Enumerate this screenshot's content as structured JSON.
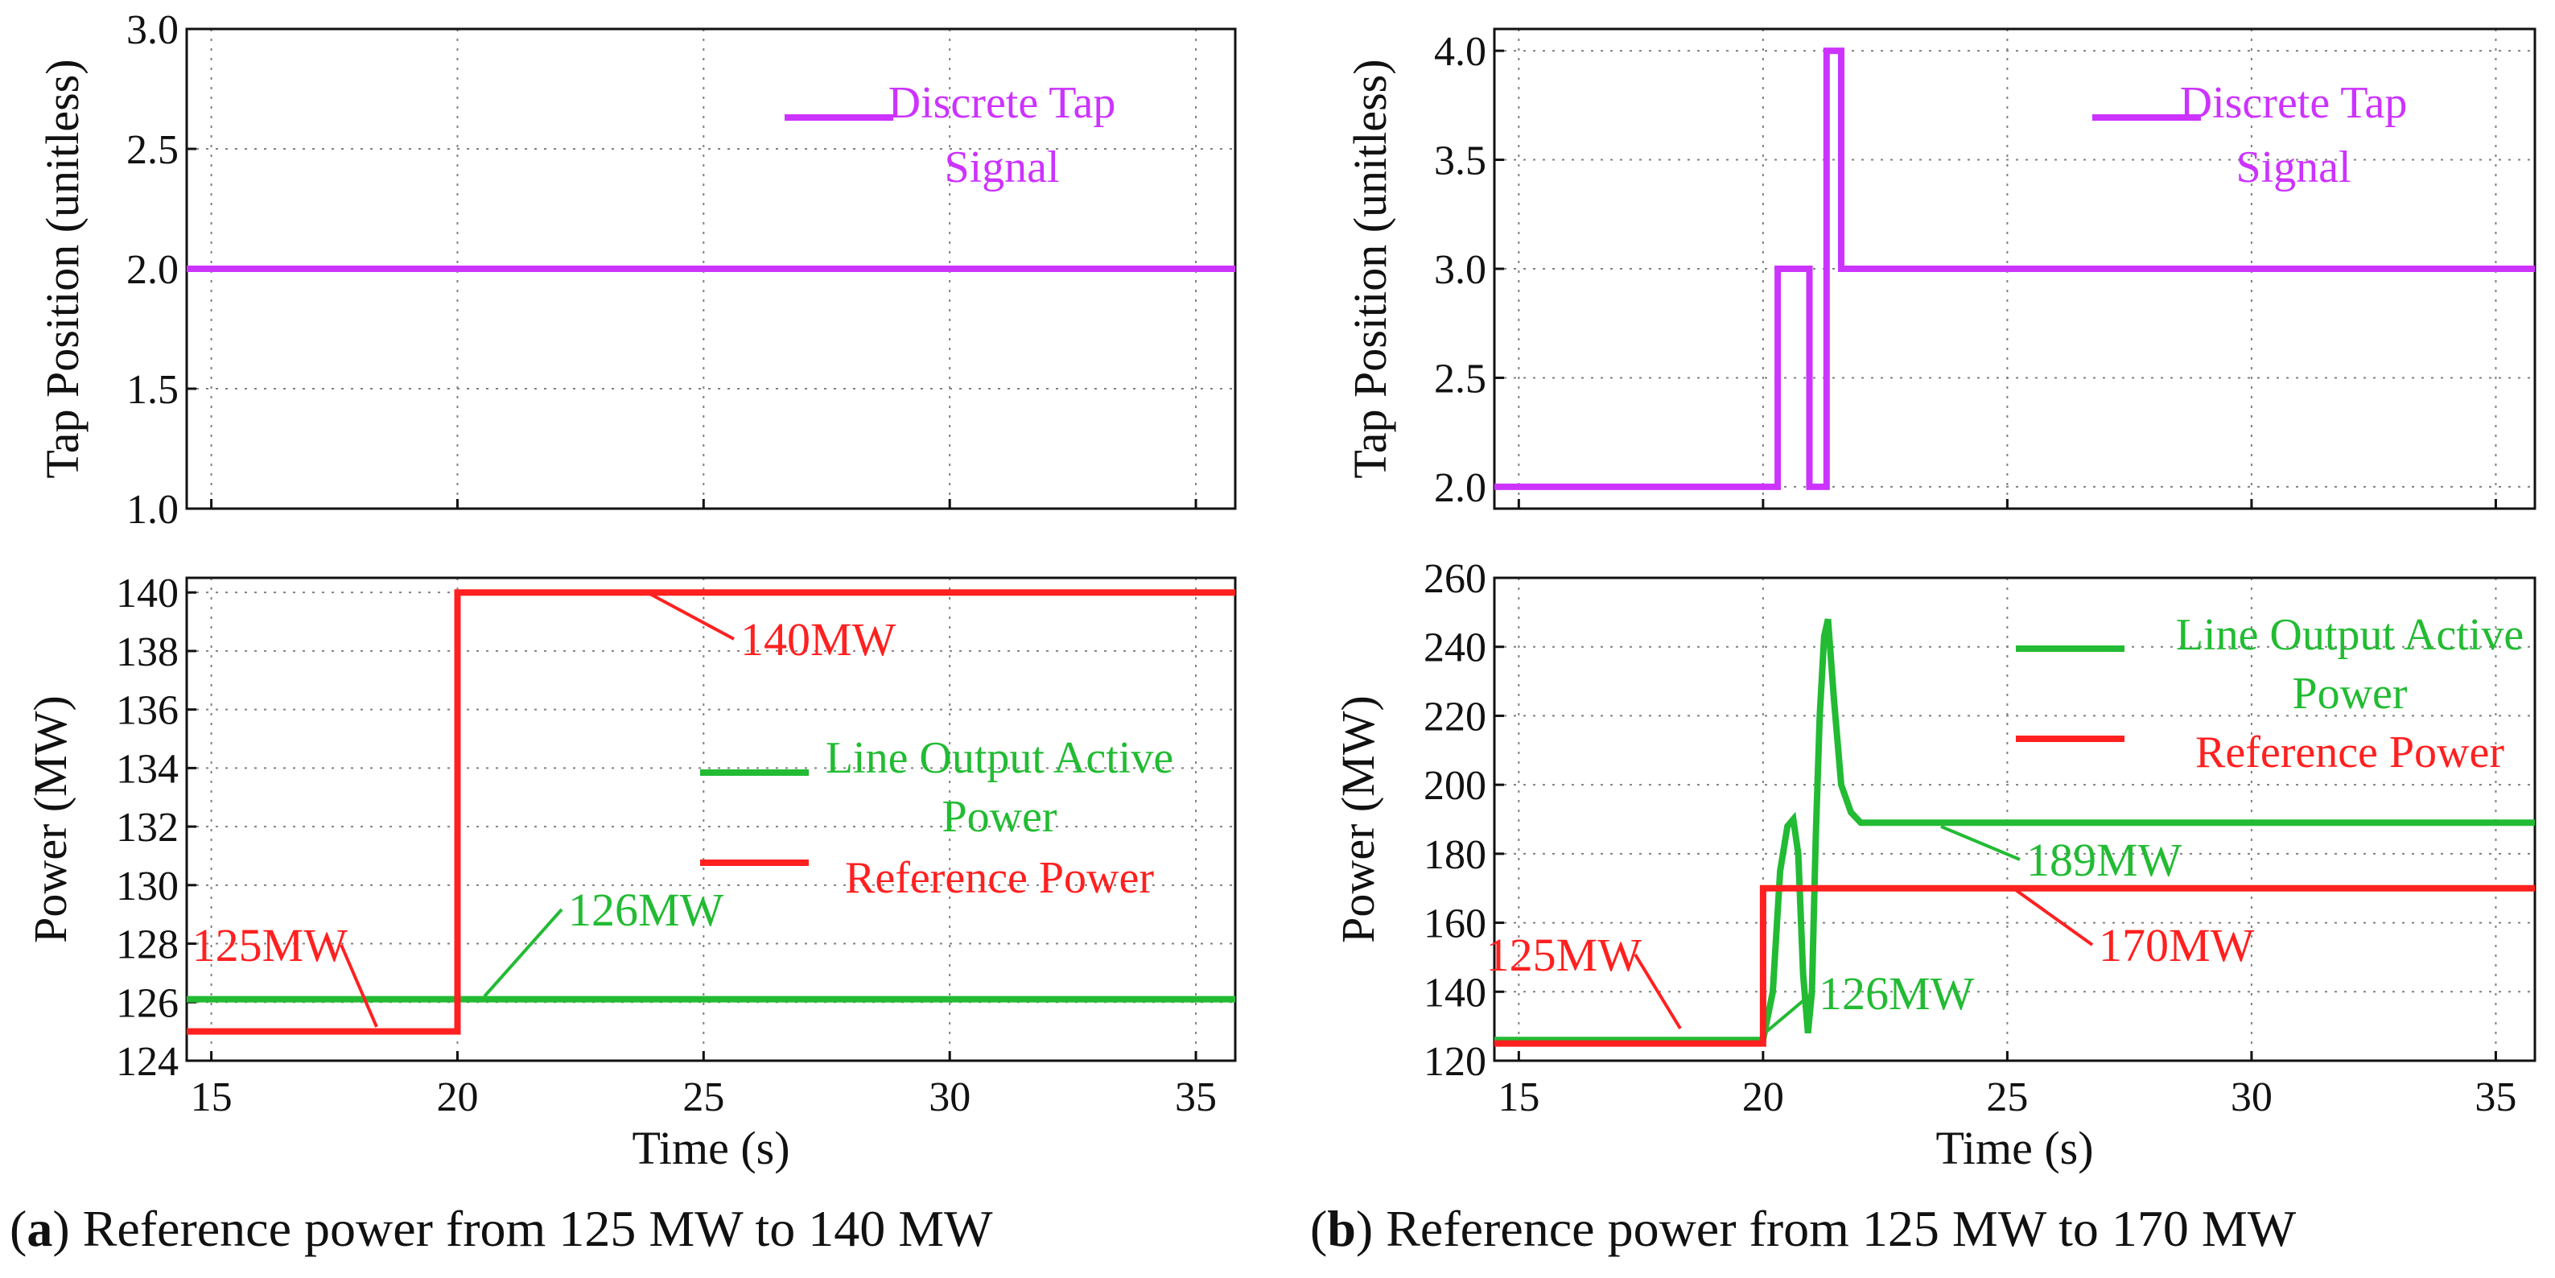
{
  "chart_data": [
    {
      "type": "line",
      "panel": "a-top",
      "ylabel": "Tap Position (unitless)",
      "xlim": [
        14.5,
        35.8
      ],
      "ylim": [
        1.0,
        3.0
      ],
      "xticks": [
        15,
        20,
        25,
        30,
        35
      ],
      "yticks": [
        "1.0",
        "1.5",
        "2.0",
        "2.5",
        "3.0"
      ],
      "legend": [
        "Discrete Tap",
        "Signal"
      ],
      "series": [
        {
          "name": "Discrete Tap Signal",
          "color": "#cc33ff",
          "x": [
            14.5,
            35.8
          ],
          "y": [
            2.0,
            2.0
          ]
        }
      ]
    },
    {
      "type": "line",
      "panel": "a-bottom",
      "xlabel": "Time (s)",
      "ylabel": "Power (MW)",
      "xlim": [
        14.5,
        35.8
      ],
      "ylim": [
        124,
        140.5
      ],
      "xticks": [
        15,
        20,
        25,
        30,
        35
      ],
      "yticks": [
        "124",
        "126",
        "128",
        "130",
        "132",
        "134",
        "136",
        "138",
        "140"
      ],
      "legend": [
        "Line Output Active",
        "Power",
        "Reference Power"
      ],
      "series": [
        {
          "name": "Line Output Active Power",
          "color": "#22bb33",
          "x": [
            14.5,
            35.8
          ],
          "y": [
            126.1,
            126.1
          ]
        },
        {
          "name": "Reference Power",
          "color": "#ff2020",
          "x": [
            14.5,
            20.0,
            20.0,
            35.8
          ],
          "y": [
            125,
            125,
            140,
            140
          ]
        }
      ],
      "annotations": [
        {
          "text": "140MW",
          "color": "#ff2020",
          "at": [
            24.0,
            140
          ]
        },
        {
          "text": "126MW",
          "color": "#22bb33",
          "at": [
            20.9,
            126.1
          ]
        },
        {
          "text": "125MW",
          "color": "#ff2020",
          "at": [
            18.2,
            125
          ]
        }
      ],
      "caption": {
        "letter": "a",
        "text": "Reference power from 125 MW to 140 MW"
      }
    },
    {
      "type": "line",
      "panel": "b-top",
      "ylabel": "Tap Position (unitless)",
      "xlim": [
        14.5,
        35.8
      ],
      "ylim": [
        1.9,
        4.1
      ],
      "xticks": [
        15,
        20,
        25,
        30,
        35
      ],
      "yticks": [
        "2.0",
        "2.5",
        "3.0",
        "3.5",
        "4.0"
      ],
      "legend": [
        "Discrete Tap",
        "Signal"
      ],
      "series": [
        {
          "name": "Discrete Tap Signal",
          "color": "#cc33ff",
          "x": [
            14.5,
            20.3,
            20.3,
            20.95,
            20.95,
            21.3,
            21.3,
            21.6,
            21.6,
            35.8
          ],
          "y": [
            2.0,
            2.0,
            3.0,
            3.0,
            2.0,
            2.0,
            4.0,
            4.0,
            3.0,
            3.0
          ]
        }
      ]
    },
    {
      "type": "line",
      "panel": "b-bottom",
      "xlabel": "Time (s)",
      "ylabel": "Power (MW)",
      "xlim": [
        14.5,
        35.8
      ],
      "ylim": [
        120,
        260
      ],
      "xticks": [
        15,
        20,
        25,
        30,
        35
      ],
      "yticks": [
        "120",
        "140",
        "160",
        "180",
        "200",
        "220",
        "240",
        "260"
      ],
      "legend": [
        "Line Output Active",
        "Power",
        "Reference Power"
      ],
      "series": [
        {
          "name": "Line Output Active Power",
          "color": "#22bb33",
          "x": [
            14.5,
            19.8,
            20.0,
            20.2,
            20.35,
            20.5,
            20.62,
            20.72,
            20.82,
            20.92,
            21.0,
            21.08,
            21.16,
            21.25,
            21.33,
            21.45,
            21.6,
            21.8,
            22.0,
            22.5,
            35.8
          ],
          "y": [
            126,
            126,
            126,
            140,
            175,
            188,
            190,
            180,
            145,
            128,
            140,
            185,
            220,
            243,
            248,
            225,
            200,
            192,
            189,
            189,
            189
          ]
        },
        {
          "name": "Reference Power",
          "color": "#ff2020",
          "x": [
            14.5,
            20.0,
            20.0,
            35.8
          ],
          "y": [
            125,
            125,
            170,
            170
          ]
        }
      ],
      "annotations": [
        {
          "text": "189MW",
          "color": "#22bb33",
          "at": [
            23.0,
            189
          ]
        },
        {
          "text": "170MW",
          "color": "#ff2020",
          "at": [
            24.0,
            170
          ]
        },
        {
          "text": "125MW",
          "color": "#ff2020",
          "at": [
            18.2,
            125
          ]
        },
        {
          "text": "126MW",
          "color": "#22bb33",
          "at": [
            21.0,
            129
          ]
        }
      ],
      "caption": {
        "letter": "b",
        "text": "Reference power from 125 MW to 170 MW"
      }
    }
  ],
  "captions": {
    "a_open": "(",
    "a_letter": "a",
    "a_rest": ") Reference power from 125 MW to 140 MW",
    "b_open": "(",
    "b_letter": "b",
    "b_rest": ") Reference power from 125 MW to 170 MW"
  }
}
